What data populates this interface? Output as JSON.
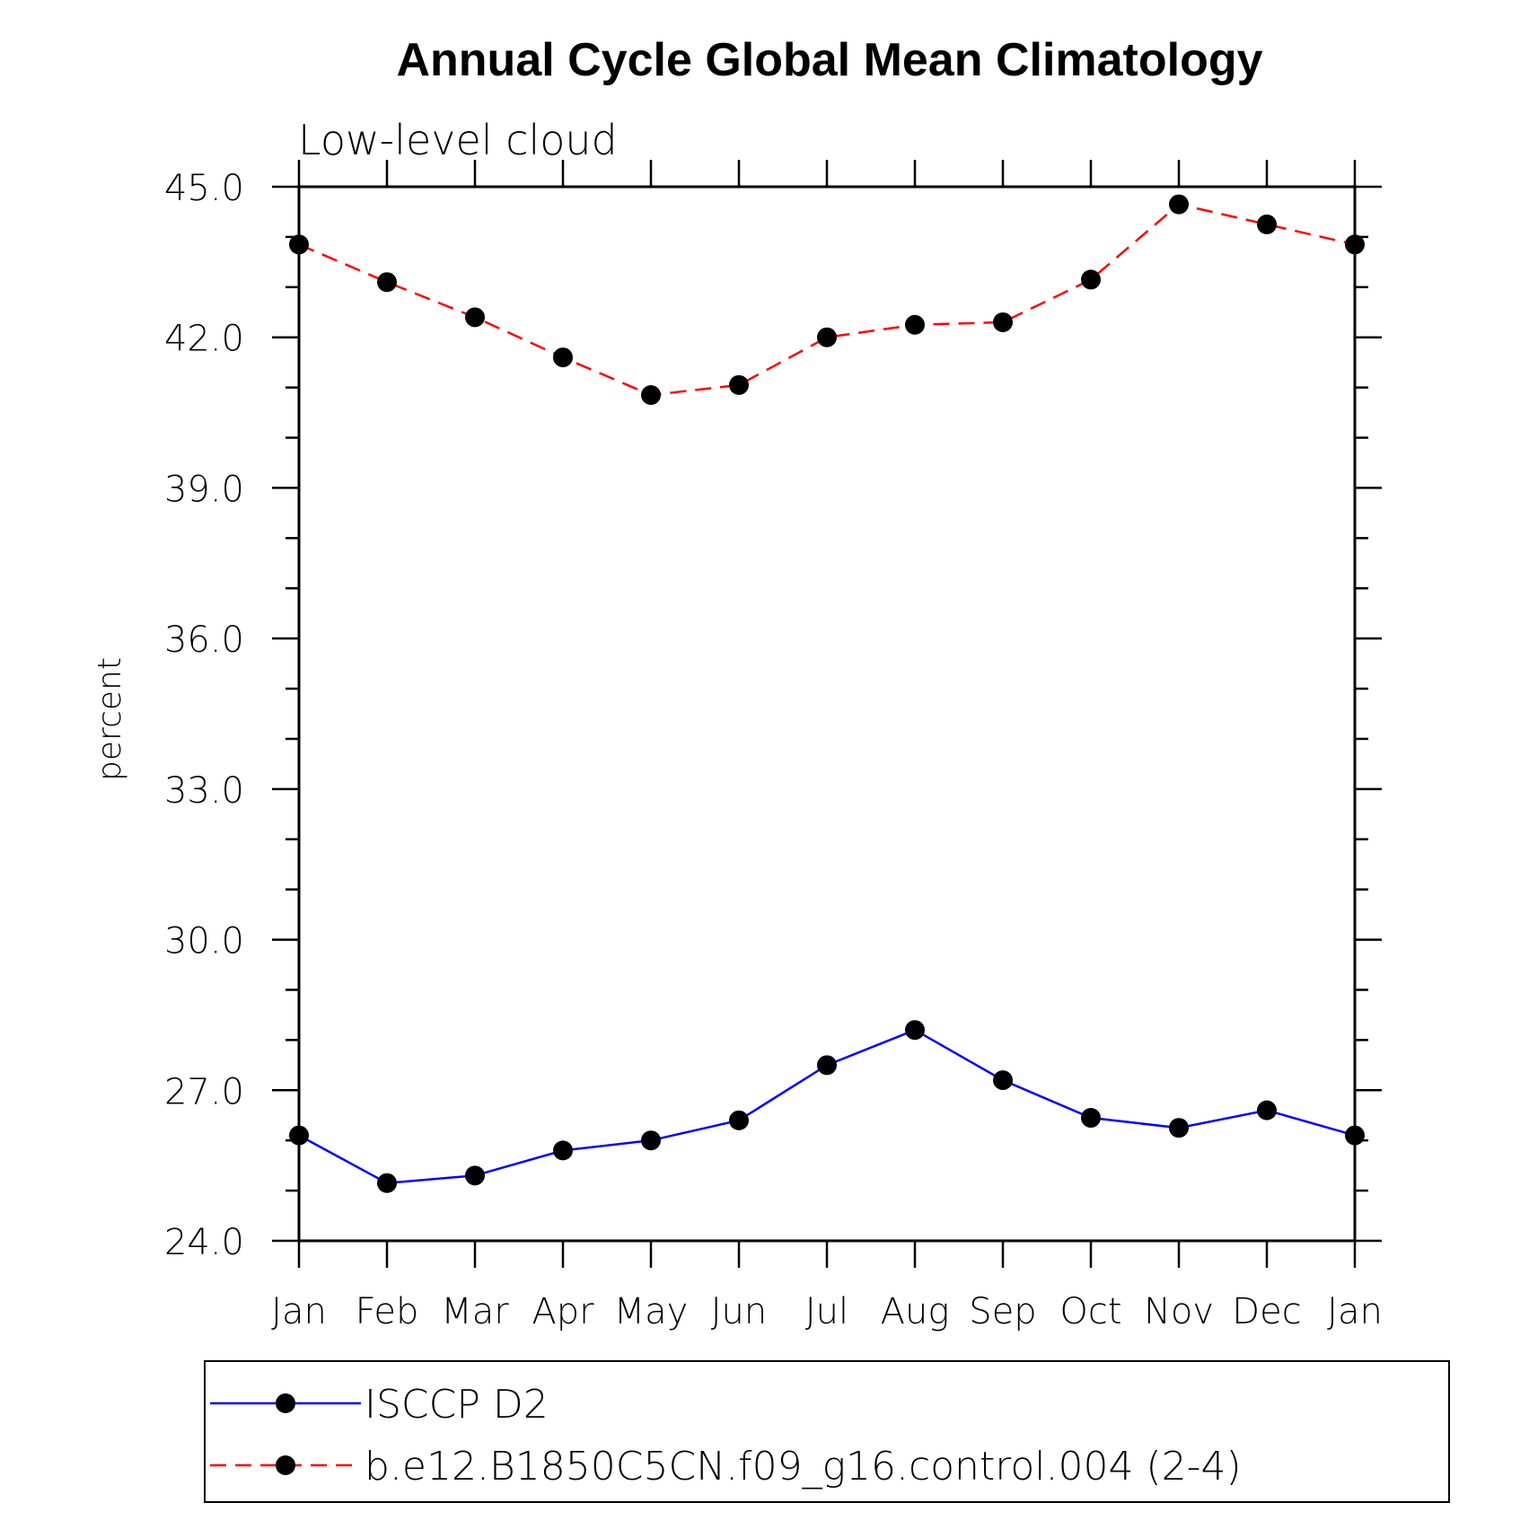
{
  "chart_data": {
    "type": "line",
    "title": "Annual Cycle Global Mean Climatology",
    "subtitle": "Low-level cloud",
    "ylabel": "percent",
    "xlabel": "",
    "categories": [
      "Jan",
      "Feb",
      "Mar",
      "Apr",
      "May",
      "Jun",
      "Jul",
      "Aug",
      "Sep",
      "Oct",
      "Nov",
      "Dec",
      "Jan"
    ],
    "ylim": [
      24.0,
      45.0
    ],
    "yticks": [
      "24.0",
      "27.0",
      "30.0",
      "33.0",
      "36.0",
      "39.0",
      "42.0",
      "45.0"
    ],
    "grid": false,
    "legend_position": "bottom",
    "series": [
      {
        "name": "ISCCP D2",
        "color": "#0000ff",
        "line_style": "solid",
        "marker": "filled-circle",
        "values": [
          26.1,
          25.15,
          25.3,
          25.8,
          26.0,
          26.4,
          27.5,
          28.2,
          27.2,
          26.45,
          26.25,
          26.6,
          26.1
        ]
      },
      {
        "name": "b.e12.B1850C5CN.f09_g16.control.004 (2-4)",
        "color": "#ff0000",
        "line_style": "dashed",
        "marker": "filled-circle",
        "values": [
          43.85,
          43.1,
          42.4,
          41.6,
          40.85,
          41.05,
          42.0,
          42.25,
          42.3,
          43.15,
          44.65,
          44.25,
          43.85
        ]
      }
    ]
  }
}
